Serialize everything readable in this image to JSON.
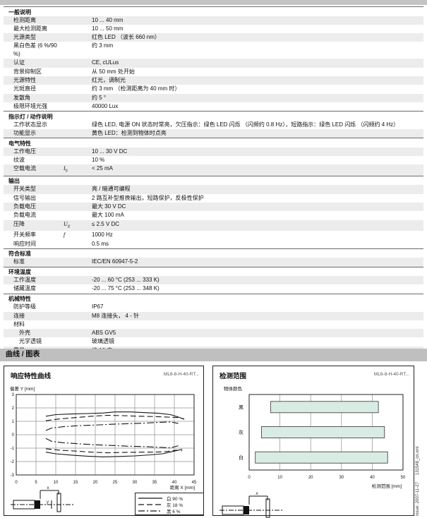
{
  "page": {
    "charts_section_title": "曲线 / 图表",
    "side_note": "Issue: 2007-11-27      131548_cn.xml",
    "accent_colors": {
      "row_shading": "#ececec",
      "band_gray": "#bfbfbf",
      "bar_fill": "#d9ece4"
    }
  },
  "spec_sections": [
    {
      "title": "一般说明",
      "rows": [
        {
          "label": "检测距离",
          "value": "10 ... 40 mm",
          "shaded": true
        },
        {
          "label": "最大检测距离",
          "value": "10 ... 50 mm",
          "shaded": false
        },
        {
          "label": "光源类型",
          "value": "红色 LED （波长 660 nm）",
          "shaded": true
        },
        {
          "label": "黑白色差 (6 %/90 %)",
          "value": "约 3 mm",
          "shaded": false
        },
        {
          "label": "认证",
          "value": "CE, cULus",
          "shaded": true
        },
        {
          "label": "背景抑制区",
          "value": "从 50 mm 处开始",
          "shaded": false
        },
        {
          "label": "光源特性",
          "value": "红光，调制光",
          "shaded": true
        },
        {
          "label": "光斑直径",
          "value": "约 3 mm （检测距离为 40 mm 时）",
          "shaded": false
        },
        {
          "label": "发散角",
          "value": "约 5 °",
          "shaded": true
        },
        {
          "label": "极限环境光强",
          "value": "40000 Lux",
          "shaded": false
        }
      ]
    },
    {
      "title": "指示灯 / 动作说明",
      "rows": [
        {
          "label": "工作状态显示",
          "value": "绿色 LED, 电源 ON 状态时常亮，欠压指示：绿色 LED 闪烁 （闪频约 0.8 Hz），短路指示：绿色 LED 闪烁 （闪频约 4 Hz）",
          "shaded": false
        },
        {
          "label": "功能显示",
          "value": "黄色 LED：检测到物体时点亮",
          "shaded": true
        }
      ]
    },
    {
      "title": "电气特性",
      "rows": [
        {
          "label": "工作电压",
          "value": "10 ... 30 V DC",
          "shaded": true
        },
        {
          "label": "纹波",
          "value": "10 %",
          "shaded": false
        },
        {
          "label": "空载电流",
          "symbol": "I",
          "symbol_sub": "0",
          "value": "< 25 mA",
          "shaded": true
        }
      ]
    },
    {
      "title": "输出",
      "rows": [
        {
          "label": "开关类型",
          "value": "亮 / 暗通可编程",
          "shaded": true
        },
        {
          "label": "信号输出",
          "value": "2 路互补型推挽输出，短路保护，反极性保护",
          "shaded": false
        },
        {
          "label": "负载电压",
          "value": "最大 30 V DC",
          "shaded": true
        },
        {
          "label": "负载电流",
          "value": "最大 100 mA",
          "shaded": false
        },
        {
          "label": "压降",
          "symbol": "U",
          "symbol_sub": "d",
          "value": "≤ 2.5 V DC",
          "shaded": true
        },
        {
          "label": "开关频率",
          "symbol": "f",
          "value": "1000 Hz",
          "shaded": false
        },
        {
          "label": "响应时间",
          "value": "0.5 ms",
          "shaded": false
        }
      ]
    },
    {
      "title": "符合标准",
      "rows": [
        {
          "label": "标准",
          "value": "IEC/EN 60947-5-2",
          "shaded": true
        }
      ]
    },
    {
      "title": "环境温度",
      "rows": [
        {
          "label": "工作温度",
          "value": "-20 ... 60 °C (253 ... 333 K)",
          "shaded": true
        },
        {
          "label": "储藏温度",
          "value": "-20 ... 75 °C (253 ... 348 K)",
          "shaded": false
        }
      ]
    },
    {
      "title": "机械特性",
      "rows": [
        {
          "label": "防护等级",
          "value": "IP67",
          "shaded": false
        },
        {
          "label": "连接",
          "value": "M8 连接头， 4 - 针",
          "shaded": true
        },
        {
          "label": "材料",
          "value": "",
          "shaded": false
        },
        {
          "label": "外壳",
          "value": "ABS GV5",
          "shaded": true,
          "indent": true
        },
        {
          "label": "光学透镜",
          "value": "玻璃透镜",
          "shaded": false,
          "indent": true
        },
        {
          "label": "重量",
          "value": "约 10 克",
          "shaded": true
        }
      ]
    }
  ],
  "charts": {
    "left": {
      "title": "响应特性曲线",
      "model": "ML6-8-H-40-RT...",
      "chart_data": {
        "type": "line",
        "title": "响应特性曲线",
        "xlabel": "距离 X [mm]",
        "ylabel": "偏差 Y [mm]",
        "xlim": [
          0,
          45
        ],
        "ylim": [
          -3,
          3
        ],
        "x_tick_step": 5,
        "y_tick_step": 1,
        "grid": true,
        "legend_position": "bottom-right",
        "series": [
          {
            "name": "白 90 %",
            "style": "solid",
            "upper": [
              [
                7.5,
                1.38
              ],
              [
                10,
                1.5
              ],
              [
                14,
                1.55
              ],
              [
                18,
                1.58
              ],
              [
                22,
                1.62
              ],
              [
                25,
                1.7
              ],
              [
                29,
                1.7
              ],
              [
                33,
                1.64
              ],
              [
                36,
                1.6
              ],
              [
                39,
                1.5
              ],
              [
                41,
                1.32
              ],
              [
                42.5,
                1.15
              ]
            ],
            "lower": [
              [
                7.5,
                -1.3
              ],
              [
                10,
                -1.42
              ],
              [
                14,
                -1.52
              ],
              [
                18,
                -1.6
              ],
              [
                22,
                -1.65
              ],
              [
                26,
                -1.62
              ],
              [
                30,
                -1.58
              ],
              [
                34,
                -1.5
              ],
              [
                37,
                -1.42
              ],
              [
                40,
                -1.22
              ],
              [
                42,
                -1.08
              ]
            ]
          },
          {
            "name": "灰 18 %",
            "style": "dashed",
            "upper": [
              [
                7.5,
                1.05
              ],
              [
                11,
                1.18
              ],
              [
                15,
                1.28
              ],
              [
                19,
                1.38
              ],
              [
                23,
                1.45
              ],
              [
                27,
                1.42
              ],
              [
                31,
                1.38
              ],
              [
                35,
                1.35
              ],
              [
                38,
                1.32
              ],
              [
                41,
                1.28
              ],
              [
                42.5,
                1.18
              ]
            ],
            "lower": [
              [
                7.5,
                -1.05
              ],
              [
                11,
                -1.15
              ],
              [
                15,
                -1.22
              ],
              [
                19,
                -1.3
              ],
              [
                23,
                -1.35
              ],
              [
                27,
                -1.32
              ],
              [
                31,
                -1.3
              ],
              [
                35,
                -1.3
              ],
              [
                38,
                -1.25
              ],
              [
                40.5,
                -1.15
              ],
              [
                42,
                -1.2
              ]
            ]
          },
          {
            "name": "黑 6 %",
            "style": "dashdot",
            "upper": [
              [
                7.5,
                0.32
              ],
              [
                9,
                0.5
              ],
              [
                12,
                0.6
              ],
              [
                16,
                0.68
              ],
              [
                20,
                0.72
              ],
              [
                24,
                0.78
              ],
              [
                28,
                0.82
              ],
              [
                32,
                0.86
              ],
              [
                36,
                0.92
              ],
              [
                39,
                0.95
              ],
              [
                41,
                0.85
              ]
            ],
            "lower": [
              [
                7.5,
                -0.28
              ],
              [
                9,
                -0.5
              ],
              [
                12,
                -0.6
              ],
              [
                16,
                -0.68
              ],
              [
                20,
                -0.75
              ],
              [
                24,
                -0.8
              ],
              [
                28,
                -0.85
              ],
              [
                32,
                -0.88
              ],
              [
                36,
                -0.93
              ],
              [
                39,
                -0.98
              ],
              [
                41,
                -0.82
              ]
            ]
          }
        ]
      }
    },
    "right": {
      "title": "检测范围",
      "model": "ML6-8-H-40-RT...",
      "chart_data": {
        "type": "bar-horizontal",
        "category_axis_label": "物体颜色",
        "xlabel": "检测范围 [mm]",
        "xlim": [
          0,
          50
        ],
        "x_tick_step": 10,
        "grid": true,
        "categories": [
          "黑",
          "灰",
          "白"
        ],
        "ranges": [
          [
            7,
            42
          ],
          [
            4,
            44
          ],
          [
            2,
            45
          ]
        ],
        "bar_color": "#d9ece4"
      }
    }
  }
}
